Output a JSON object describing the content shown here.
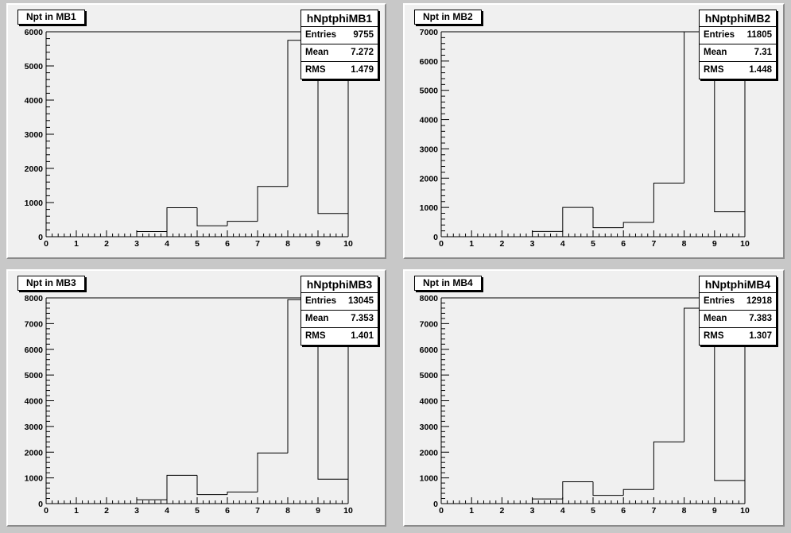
{
  "chart_data": [
    {
      "type": "bar",
      "title": "Npt in MB1",
      "histogram_name": "hNptphiMB1",
      "bin_edges": [
        0,
        1,
        2,
        3,
        4,
        5,
        6,
        7,
        8,
        9,
        10
      ],
      "values": [
        0,
        0,
        0,
        150,
        850,
        320,
        450,
        1470,
        5750,
        680
      ],
      "xlim": [
        0,
        10
      ],
      "ylim": [
        0,
        6000
      ],
      "yticks": [
        0,
        1000,
        2000,
        3000,
        4000,
        5000,
        6000
      ],
      "stats": {
        "entries_label": "Entries",
        "entries": "9755",
        "mean_label": "Mean",
        "mean": "7.272",
        "rms_label": "RMS",
        "rms": "1.479"
      }
    },
    {
      "type": "bar",
      "title": "Npt in MB2",
      "histogram_name": "hNptphiMB2",
      "bin_edges": [
        0,
        1,
        2,
        3,
        4,
        5,
        6,
        7,
        8,
        9,
        10
      ],
      "values": [
        0,
        0,
        0,
        180,
        1000,
        310,
        490,
        1830,
        7000,
        850
      ],
      "xlim": [
        0,
        10
      ],
      "ylim": [
        0,
        7000
      ],
      "yticks": [
        0,
        1000,
        2000,
        3000,
        4000,
        5000,
        6000,
        7000
      ],
      "stats": {
        "entries_label": "Entries",
        "entries": "11805",
        "mean_label": "Mean",
        "mean": "7.31",
        "rms_label": "RMS",
        "rms": "1.448"
      }
    },
    {
      "type": "bar",
      "title": "Npt in MB3",
      "histogram_name": "hNptphiMB3",
      "bin_edges": [
        0,
        1,
        2,
        3,
        4,
        5,
        6,
        7,
        8,
        9,
        10
      ],
      "values": [
        0,
        0,
        0,
        150,
        1100,
        350,
        450,
        1970,
        7930,
        950
      ],
      "xlim": [
        0,
        10
      ],
      "ylim": [
        0,
        8000
      ],
      "yticks": [
        0,
        1000,
        2000,
        3000,
        4000,
        5000,
        6000,
        7000,
        8000
      ],
      "stats": {
        "entries_label": "Entries",
        "entries": "13045",
        "mean_label": "Mean",
        "mean": "7.353",
        "rms_label": "RMS",
        "rms": "1.401"
      }
    },
    {
      "type": "bar",
      "title": "Npt in MB4",
      "histogram_name": "hNptphiMB4",
      "bin_edges": [
        0,
        1,
        2,
        3,
        4,
        5,
        6,
        7,
        8,
        9,
        10
      ],
      "values": [
        0,
        0,
        0,
        180,
        850,
        320,
        550,
        2400,
        7600,
        900
      ],
      "xlim": [
        0,
        10
      ],
      "ylim": [
        0,
        8000
      ],
      "yticks": [
        0,
        1000,
        2000,
        3000,
        4000,
        5000,
        6000,
        7000,
        8000
      ],
      "stats": {
        "entries_label": "Entries",
        "entries": "12918",
        "mean_label": "Mean",
        "mean": "7.383",
        "rms_label": "RMS",
        "rms": "1.307"
      }
    }
  ]
}
